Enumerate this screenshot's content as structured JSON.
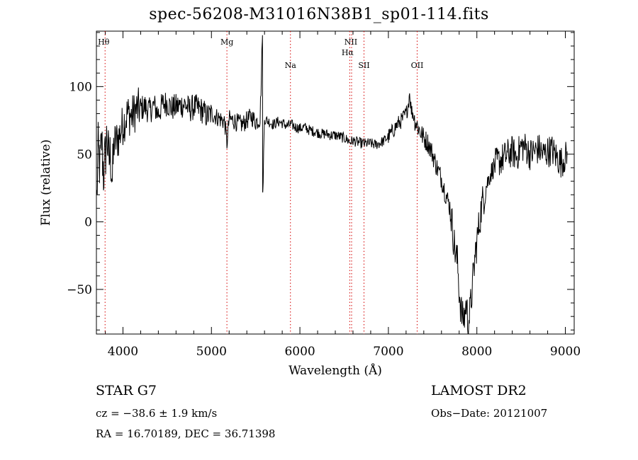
{
  "chart_data": {
    "type": "line",
    "title": "spec-56208-M31016N38B1_sp01-114.fits",
    "xlabel": "Wavelength (Å)",
    "ylabel": "Flux (relative)",
    "xlim": [
      3700,
      9100
    ],
    "ylim": [
      -83,
      141
    ],
    "x_ticks": [
      4000,
      5000,
      6000,
      7000,
      8000,
      9000
    ],
    "y_ticks": [
      -50,
      0,
      50,
      100
    ],
    "grid": false,
    "line_color": "#000000",
    "marker_color": "#d40000",
    "lines": [
      {
        "name": "Hθ",
        "x": 3798
      },
      {
        "name": "Mg",
        "x": 5175
      },
      {
        "name": "Na",
        "x": 5893
      },
      {
        "name": "NII",
        "x": 6584
      },
      {
        "name": "Hα",
        "x": 6563
      },
      {
        "name": "SII",
        "x": 6724
      },
      {
        "name": "OII",
        "x": 7325
      }
    ],
    "series": [
      {
        "x": [
          3700,
          3720,
          3740,
          3760,
          3780,
          3800,
          3820,
          3840,
          3860,
          3880,
          3900,
          3950,
          4000,
          4050,
          4100,
          4150,
          4200,
          4250,
          4300,
          4350,
          4400,
          4450,
          4500,
          4550,
          4600,
          4650,
          4700,
          4750,
          4800,
          4850,
          4900,
          4950,
          5000,
          5050,
          5100,
          5150,
          5175,
          5200,
          5250,
          5300,
          5350,
          5400,
          5450,
          5500,
          5550,
          5577,
          5580,
          5600,
          5650,
          5700,
          5750,
          5800,
          5850,
          5900,
          5950,
          6000,
          6050,
          6100,
          6150,
          6200,
          6250,
          6300,
          6350,
          6400,
          6450,
          6500,
          6550,
          6563,
          6600,
          6650,
          6700,
          6750,
          6800,
          6850,
          6900,
          6950,
          7000,
          7050,
          7100,
          7150,
          7200,
          7220,
          7240,
          7260,
          7280,
          7300,
          7350,
          7400,
          7450,
          7500,
          7550,
          7600,
          7650,
          7700,
          7750,
          7780,
          7800,
          7820,
          7840,
          7860,
          7880,
          7900,
          7920,
          7940,
          7960,
          7980,
          8000,
          8050,
          8100,
          8150,
          8200,
          8250,
          8300,
          8350,
          8400,
          8450,
          8500,
          8550,
          8600,
          8650,
          8700,
          8750,
          8800,
          8850,
          8900,
          8950,
          9000
        ],
        "y": [
          5,
          52,
          40,
          60,
          35,
          48,
          65,
          44,
          50,
          30,
          58,
          62,
          72,
          80,
          78,
          83,
          84,
          85,
          82,
          86,
          80,
          87,
          88,
          84,
          85,
          86,
          87,
          83,
          85,
          84,
          82,
          78,
          80,
          78,
          76,
          74,
          58,
          76,
          75,
          73,
          72,
          75,
          78,
          74,
          76,
          138,
          22,
          76,
          74,
          72,
          74,
          73,
          71,
          72,
          70,
          69,
          70,
          68,
          67,
          66,
          65,
          65,
          64,
          64,
          63,
          62,
          60,
          59,
          60,
          59,
          58,
          58,
          58,
          57,
          58,
          60,
          63,
          67,
          72,
          75,
          80,
          85,
          95,
          82,
          80,
          75,
          68,
          62,
          58,
          50,
          40,
          32,
          20,
          10,
          -20,
          -30,
          -50,
          -65,
          -72,
          -70,
          -60,
          -75,
          -68,
          -55,
          -40,
          -25,
          -15,
          10,
          25,
          35,
          42,
          45,
          47,
          50,
          52,
          48,
          56,
          55,
          50,
          52,
          54,
          50,
          52,
          53,
          48,
          44,
          48
        ]
      }
    ]
  },
  "annotations": {
    "object_line": "STAR    G7",
    "survey": "LAMOST DR2",
    "cz_line": "cz = −38.6 ± 1.9 km/s",
    "obs_date": "Obs−Date: 20121007",
    "radec_line": "RA =  16.70189, DEC =  36.71398"
  }
}
